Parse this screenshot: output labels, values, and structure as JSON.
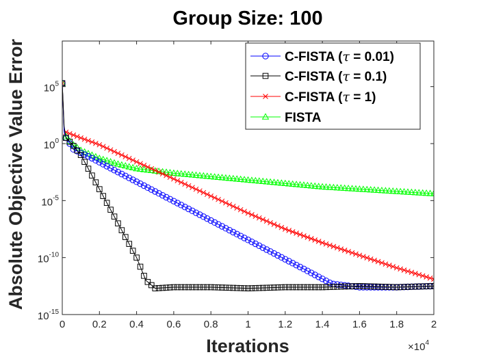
{
  "chart_data": {
    "type": "line",
    "title": "Group Size:  100",
    "xlabel": "Iterations",
    "ylabel": "Absolute Objective Value Error",
    "y_scale": "log",
    "xlim": [
      0,
      20000
    ],
    "ylim_exp": [
      -15,
      9
    ],
    "x_multiplier_label": "×10",
    "x_multiplier_exp": "4",
    "x_ticks": [
      0,
      2000,
      4000,
      6000,
      8000,
      10000,
      12000,
      14000,
      16000,
      18000,
      20000
    ],
    "x_tick_labels": [
      "0",
      "0.2",
      "0.4",
      "0.6",
      "0.8",
      "1",
      "1.2",
      "1.4",
      "1.6",
      "1.8",
      "2"
    ],
    "y_ticks_exp": [
      -15,
      -10,
      -5,
      0,
      5
    ],
    "y_tick_labels": [
      {
        "base": "10",
        "exp": "-15"
      },
      {
        "base": "10",
        "exp": "-10"
      },
      {
        "base": "10",
        "exp": "-5"
      },
      {
        "base": "10",
        "exp": "0"
      },
      {
        "base": "10",
        "exp": "5"
      }
    ],
    "legend_position": "top-right",
    "series": [
      {
        "name": "C-FISTA (τ = 0.01)",
        "legend_prefix": "C-FISTA (",
        "legend_tau": "τ",
        "legend_suffix": " = 0.01)",
        "color": "#0000ff",
        "marker": "circle",
        "x": [
          0,
          100,
          200,
          600,
          1500,
          3000,
          5000,
          7000,
          9000,
          11000,
          13000,
          14500,
          16000,
          18000,
          20000
        ],
        "log10_y": [
          5.3,
          1.0,
          0.5,
          -0.5,
          -1.2,
          -2.5,
          -4.2,
          -5.9,
          -7.6,
          -9.3,
          -11.0,
          -12.3,
          -12.6,
          -12.6,
          -12.5
        ]
      },
      {
        "name": "C-FISTA (τ = 0.1)",
        "legend_prefix": "C-FISTA (",
        "legend_tau": "τ",
        "legend_suffix": " = 0.1)",
        "color": "#000000",
        "marker": "square",
        "x": [
          0,
          100,
          200,
          500,
          1000,
          2000,
          3000,
          4000,
          4500,
          5000,
          6000,
          8000,
          10000,
          12000,
          14000,
          16000,
          18000,
          20000
        ],
        "log10_y": [
          5.3,
          1.5,
          0.5,
          0.0,
          -1.0,
          -4.0,
          -7.0,
          -10.0,
          -12.0,
          -12.7,
          -12.6,
          -12.6,
          -12.7,
          -12.6,
          -12.6,
          -12.5,
          -12.6,
          -12.5
        ]
      },
      {
        "name": "C-FISTA (τ = 1)",
        "legend_prefix": "C-FISTA (",
        "legend_tau": "τ",
        "legend_suffix": " = 1)",
        "color": "#ff0000",
        "marker": "x",
        "x": [
          0,
          100,
          200,
          1000,
          2000,
          4000,
          6000,
          8000,
          10000,
          12000,
          14000,
          16000,
          18000,
          20000
        ],
        "log10_y": [
          5.3,
          1.2,
          1.0,
          0.5,
          -0.1,
          -1.6,
          -3.1,
          -4.6,
          -6.1,
          -7.5,
          -8.7,
          -9.8,
          -10.9,
          -11.9
        ]
      },
      {
        "name": "FISTA",
        "legend_prefix": "FISTA",
        "legend_tau": "",
        "legend_suffix": "",
        "color": "#00ff00",
        "marker": "triangle",
        "x": [
          0,
          100,
          200,
          500,
          1000,
          2000,
          3000,
          4000,
          6000,
          8000,
          10000,
          12000,
          14000,
          16000,
          18000,
          20000
        ],
        "log10_y": [
          5.3,
          1.2,
          0.6,
          0.0,
          -0.6,
          -1.3,
          -1.8,
          -2.2,
          -2.6,
          -2.9,
          -3.2,
          -3.5,
          -3.8,
          -4.0,
          -4.2,
          -4.4
        ]
      }
    ]
  }
}
